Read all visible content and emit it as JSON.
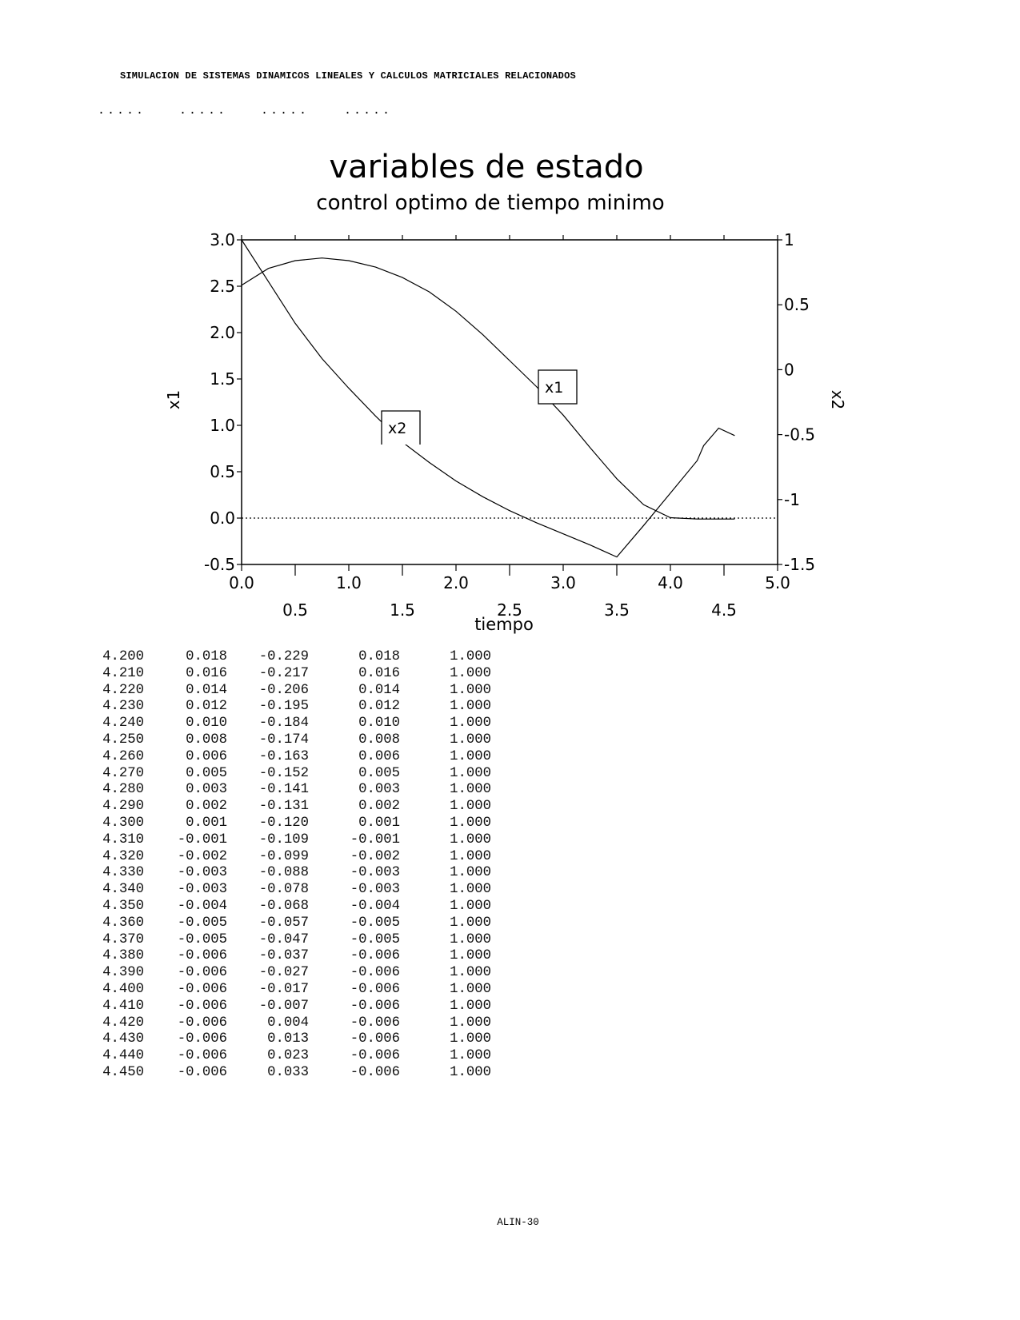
{
  "page": {
    "header": "SIMULACION DE SISTEMAS DINAMICOS LINEALES Y CALCULOS MATRICIALES RELACIONADOS",
    "dots": [
      ".....",
      ".....",
      ".....",
      "....."
    ],
    "footer": "ALIN-30"
  },
  "chart_data": {
    "type": "line",
    "title": "variables de estado",
    "subtitle": "control optimo de tiempo minimo",
    "xlabel": "tiempo",
    "ylabel_left": "x1",
    "ylabel_right": "x2",
    "xlim": [
      0,
      5
    ],
    "ylim_left": [
      -0.5,
      3.0
    ],
    "ylim_right": [
      -1.5,
      1
    ],
    "x_ticks_upper": [
      "0.0",
      "1.0",
      "2.0",
      "3.0",
      "4.0",
      "5.0"
    ],
    "x_ticks_lower": [
      "0.5",
      "1.5",
      "2.5",
      "3.5",
      "4.5"
    ],
    "y_ticks_left": [
      "3.0",
      "2.5",
      "2.0",
      "1.5",
      "1.0",
      "0.5",
      "0.0",
      "-0.5"
    ],
    "y_ticks_right": [
      "1",
      "0.5",
      "0",
      "-0.5",
      "-1",
      "-1.5"
    ],
    "zero_line": true,
    "grid": false,
    "series": [
      {
        "name": "x1",
        "axis": "left",
        "x": [
          0,
          0.25,
          0.5,
          0.75,
          1.0,
          1.25,
          1.5,
          1.75,
          2.0,
          2.25,
          2.5,
          2.75,
          3.0,
          3.25,
          3.5,
          3.75,
          4.0,
          4.25,
          4.31,
          4.45,
          4.6
        ],
        "y": [
          3.0,
          2.55,
          2.1,
          1.72,
          1.4,
          1.1,
          0.82,
          0.6,
          0.4,
          0.23,
          0.08,
          -0.05,
          -0.17,
          -0.29,
          -0.42,
          -0.08,
          0.27,
          0.62,
          0.78,
          0.97,
          0.89
        ]
      },
      {
        "name": "x2",
        "axis": "right",
        "x": [
          0,
          0.25,
          0.5,
          0.75,
          1.0,
          1.25,
          1.5,
          1.75,
          2.0,
          2.25,
          2.5,
          2.75,
          3.0,
          3.25,
          3.5,
          3.75,
          4.0,
          4.25,
          4.45,
          4.6
        ],
        "y": [
          0.65,
          0.78,
          0.84,
          0.86,
          0.84,
          0.79,
          0.71,
          0.6,
          0.45,
          0.27,
          0.07,
          -0.13,
          -0.35,
          -0.6,
          -0.84,
          -1.04,
          -1.14,
          -1.15,
          -1.15,
          -1.15
        ]
      }
    ],
    "annotations": [
      "x1",
      "x2"
    ]
  },
  "table": {
    "rows": [
      [
        "4.200",
        "0.018",
        "-0.229",
        "0.018",
        "1.000"
      ],
      [
        "4.210",
        "0.016",
        "-0.217",
        "0.016",
        "1.000"
      ],
      [
        "4.220",
        "0.014",
        "-0.206",
        "0.014",
        "1.000"
      ],
      [
        "4.230",
        "0.012",
        "-0.195",
        "0.012",
        "1.000"
      ],
      [
        "4.240",
        "0.010",
        "-0.184",
        "0.010",
        "1.000"
      ],
      [
        "4.250",
        "0.008",
        "-0.174",
        "0.008",
        "1.000"
      ],
      [
        "4.260",
        "0.006",
        "-0.163",
        "0.006",
        "1.000"
      ],
      [
        "4.270",
        "0.005",
        "-0.152",
        "0.005",
        "1.000"
      ],
      [
        "4.280",
        "0.003",
        "-0.141",
        "0.003",
        "1.000"
      ],
      [
        "4.290",
        "0.002",
        "-0.131",
        "0.002",
        "1.000"
      ],
      [
        "4.300",
        "0.001",
        "-0.120",
        "0.001",
        "1.000"
      ],
      [
        "4.310",
        "-0.001",
        "-0.109",
        "-0.001",
        "1.000"
      ],
      [
        "4.320",
        "-0.002",
        "-0.099",
        "-0.002",
        "1.000"
      ],
      [
        "4.330",
        "-0.003",
        "-0.088",
        "-0.003",
        "1.000"
      ],
      [
        "4.340",
        "-0.003",
        "-0.078",
        "-0.003",
        "1.000"
      ],
      [
        "4.350",
        "-0.004",
        "-0.068",
        "-0.004",
        "1.000"
      ],
      [
        "4.360",
        "-0.005",
        "-0.057",
        "-0.005",
        "1.000"
      ],
      [
        "4.370",
        "-0.005",
        "-0.047",
        "-0.005",
        "1.000"
      ],
      [
        "4.380",
        "-0.006",
        "-0.037",
        "-0.006",
        "1.000"
      ],
      [
        "4.390",
        "-0.006",
        "-0.027",
        "-0.006",
        "1.000"
      ],
      [
        "4.400",
        "-0.006",
        "-0.017",
        "-0.006",
        "1.000"
      ],
      [
        "4.410",
        "-0.006",
        "-0.007",
        "-0.006",
        "1.000"
      ],
      [
        "4.420",
        "-0.006",
        "0.004",
        "-0.006",
        "1.000"
      ],
      [
        "4.430",
        "-0.006",
        "0.013",
        "-0.006",
        "1.000"
      ],
      [
        "4.440",
        "-0.006",
        "0.023",
        "-0.006",
        "1.000"
      ],
      [
        "4.450",
        "-0.006",
        "0.033",
        "-0.006",
        "1.000"
      ]
    ]
  }
}
